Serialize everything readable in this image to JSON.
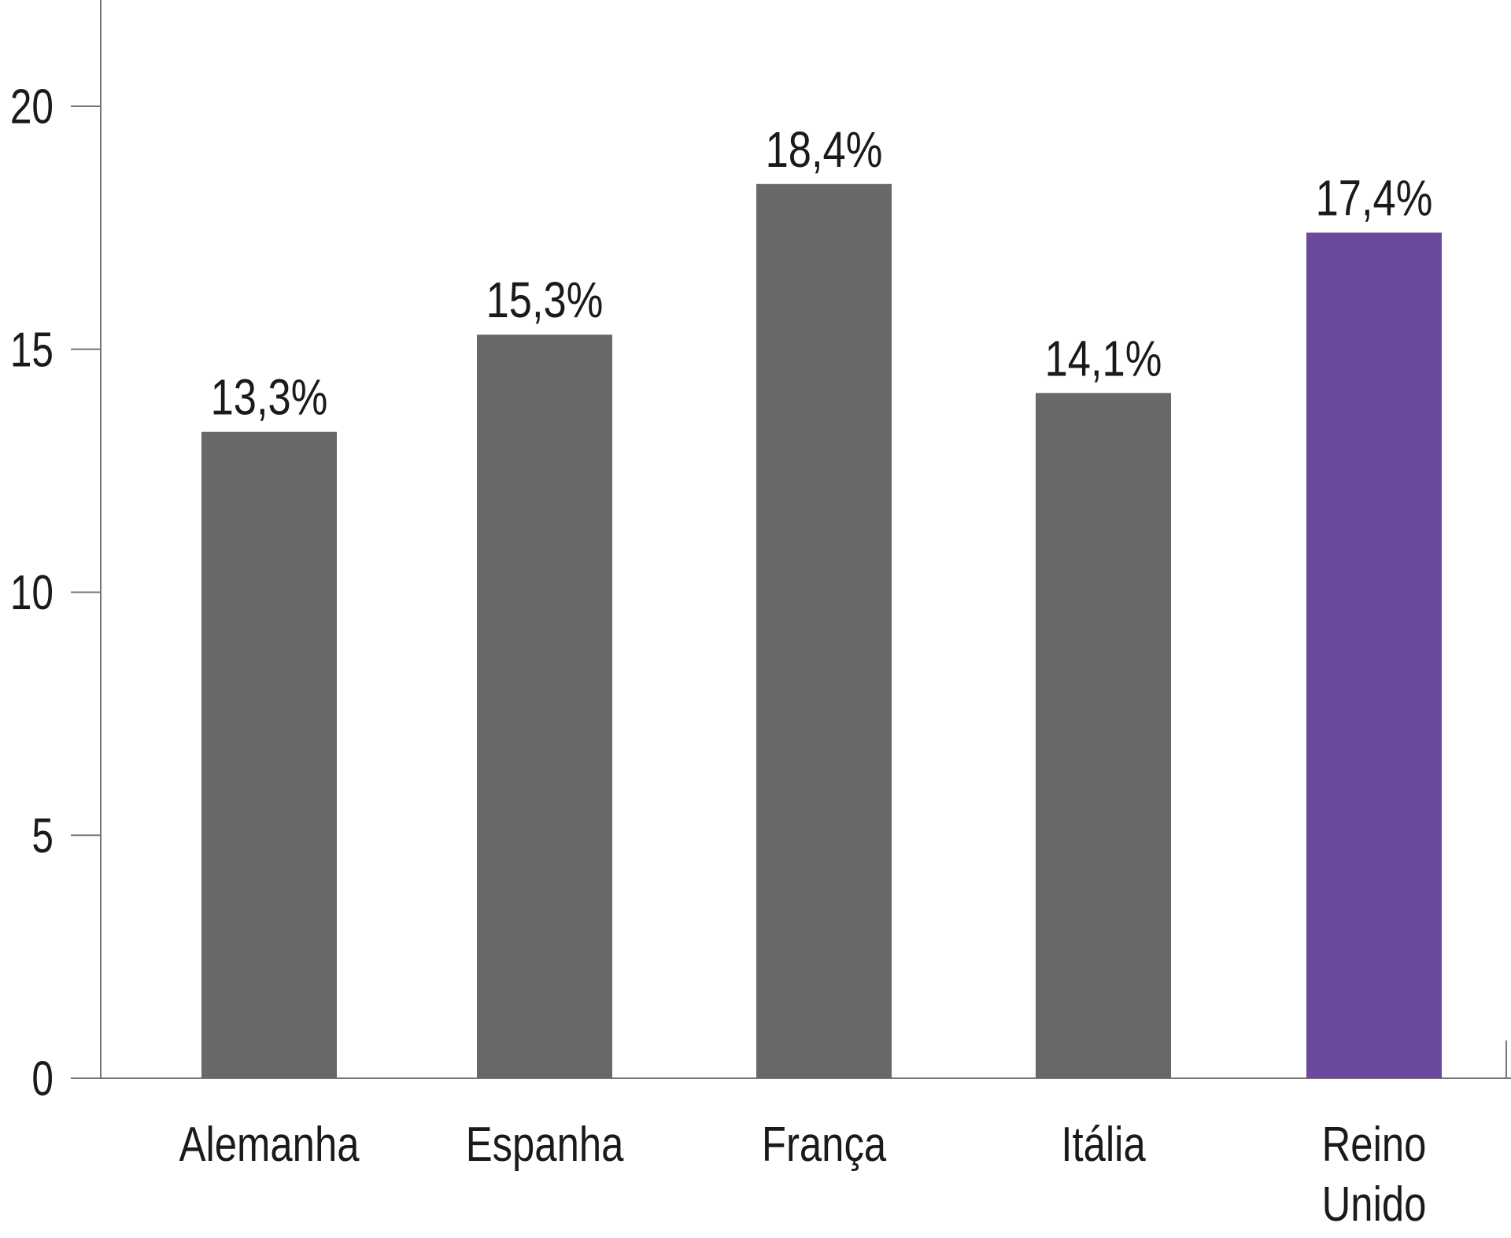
{
  "chart_data": {
    "type": "bar",
    "categories": [
      "Alemanha",
      "Espanha",
      "França",
      "Itália",
      "Reino Unido"
    ],
    "category_lines": [
      [
        "Alemanha"
      ],
      [
        "Espanha"
      ],
      [
        "França"
      ],
      [
        "Itália"
      ],
      [
        "Reino",
        "Unido"
      ]
    ],
    "values": [
      13.3,
      15.3,
      18.4,
      14.1,
      17.4
    ],
    "value_labels": [
      "13,3%",
      "15,3%",
      "18,4%",
      "14,1%",
      "17,4%"
    ],
    "title": "",
    "xlabel": "",
    "ylabel": "",
    "ylim": [
      0,
      22
    ],
    "yticks": [
      0,
      5,
      10,
      15,
      20
    ],
    "grid": false,
    "legend": "none",
    "colors": {
      "default_bar": "#686868",
      "highlight_bar": "#6a4a9f",
      "axis": "#777777",
      "text": "#1a1a1a"
    },
    "highlight_index": 4
  }
}
